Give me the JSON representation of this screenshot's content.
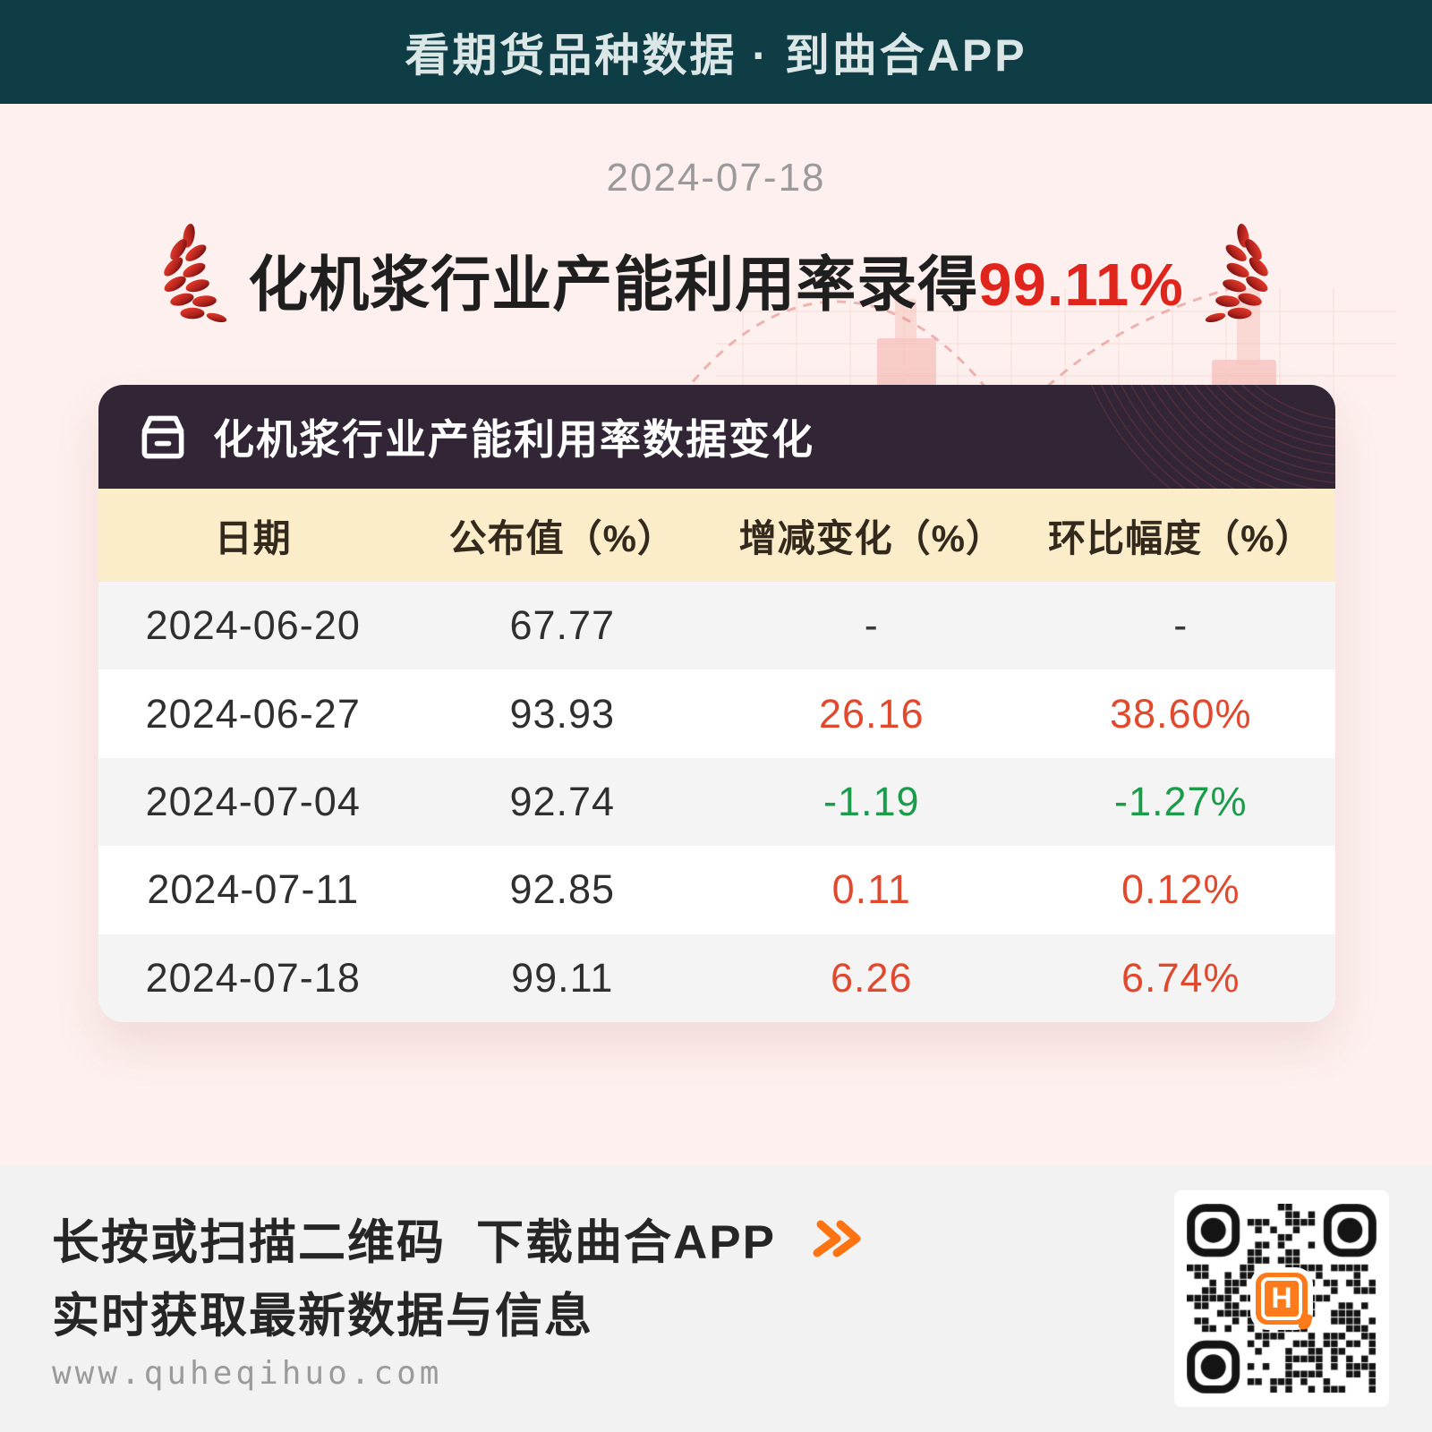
{
  "banner": {
    "title": "看期货品种数据 · 到曲合APP"
  },
  "hero": {
    "date": "2024-07-18",
    "title_prefix": "化机浆行业产能利用率录得",
    "title_value": "99.11%"
  },
  "card": {
    "title": "化机浆行业产能利用率数据变化",
    "columns": [
      "日期",
      "公布值（%）",
      "增减变化（%）",
      "环比幅度（%）"
    ],
    "rows": [
      {
        "date": "2024-06-20",
        "value": "67.77",
        "change": "-",
        "ratio": "-",
        "trend": "flat"
      },
      {
        "date": "2024-06-27",
        "value": "93.93",
        "change": "26.16",
        "ratio": "38.60%",
        "trend": "up"
      },
      {
        "date": "2024-07-04",
        "value": "92.74",
        "change": "-1.19",
        "ratio": "-1.27%",
        "trend": "down"
      },
      {
        "date": "2024-07-11",
        "value": "92.85",
        "change": "0.11",
        "ratio": "0.12%",
        "trend": "up"
      },
      {
        "date": "2024-07-18",
        "value": "99.11",
        "change": "6.26",
        "ratio": "6.74%",
        "trend": "up"
      }
    ]
  },
  "footer": {
    "cta_part1": "长按或扫描二维码",
    "cta_part2": "下载曲合APP",
    "subtitle": "实时获取最新数据与信息",
    "url": "www.quheqihuo.com",
    "qr_logo_letter": "H"
  },
  "colors": {
    "up_red": "#e0492e",
    "down_green": "#1b9c4a",
    "headline_red": "#e0251c",
    "accent_orange": "#ff7313",
    "banner_bg": "#0e3d45",
    "card_header_bg": "#312536",
    "table_head_bg": "#fcedca",
    "page_bg": "#fdf0ee"
  },
  "chart_data": {
    "type": "table",
    "title": "化机浆行业产能利用率数据变化",
    "columns": [
      "日期",
      "公布值（%）",
      "增减变化（%）",
      "环比幅度（%）"
    ],
    "x": [
      "2024-06-20",
      "2024-06-27",
      "2024-07-04",
      "2024-07-11",
      "2024-07-18"
    ],
    "series": [
      {
        "name": "公布值(%)",
        "values": [
          67.77,
          93.93,
          92.74,
          92.85,
          99.11
        ]
      },
      {
        "name": "增减变化(%)",
        "values": [
          null,
          26.16,
          -1.19,
          0.11,
          6.26
        ]
      },
      {
        "name": "环比幅度(%)",
        "values": [
          null,
          38.6,
          -1.27,
          0.12,
          6.74
        ]
      }
    ],
    "latest_highlight": "99.11%"
  }
}
